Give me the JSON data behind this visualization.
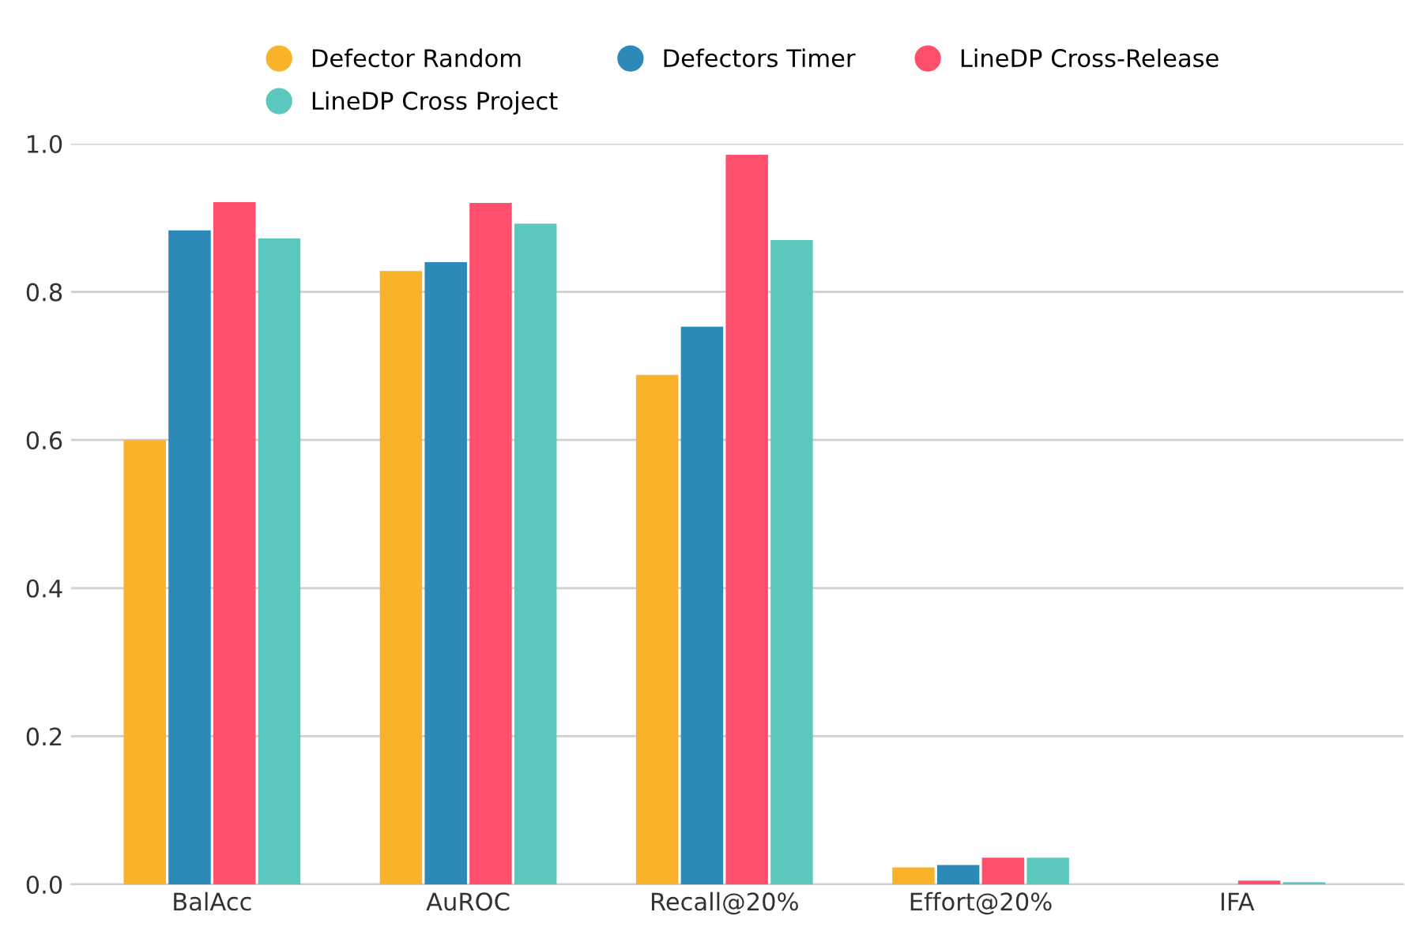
{
  "chart_data": {
    "type": "bar",
    "categories": [
      "BalAcc",
      "AuROC",
      "Recall@20%",
      "Effort@20%",
      "IFA"
    ],
    "series": [
      {
        "name": "Defector Random",
        "color": "#f8b32b",
        "values": [
          0.6,
          0.828,
          0.688,
          0.023,
          null
        ]
      },
      {
        "name": "Defectors Timer",
        "color": "#2c89b8",
        "values": [
          0.883,
          0.84,
          0.753,
          0.026,
          null
        ]
      },
      {
        "name": "LineDP Cross-Release",
        "color": "#fe4f6c",
        "values": [
          0.921,
          0.92,
          0.985,
          0.036,
          0.005
        ]
      },
      {
        "name": "LineDP Cross Project",
        "color": "#5bc8bd",
        "values": [
          0.872,
          0.892,
          0.87,
          0.036,
          0.003
        ]
      }
    ],
    "ylim": [
      0,
      1.0
    ],
    "yticks": [
      {
        "value": 0,
        "label": "0.0"
      },
      0.2,
      0.4,
      0.6,
      0.8,
      {
        "value": 1,
        "label": "1.0"
      }
    ],
    "grid": "y",
    "legend": "top"
  }
}
